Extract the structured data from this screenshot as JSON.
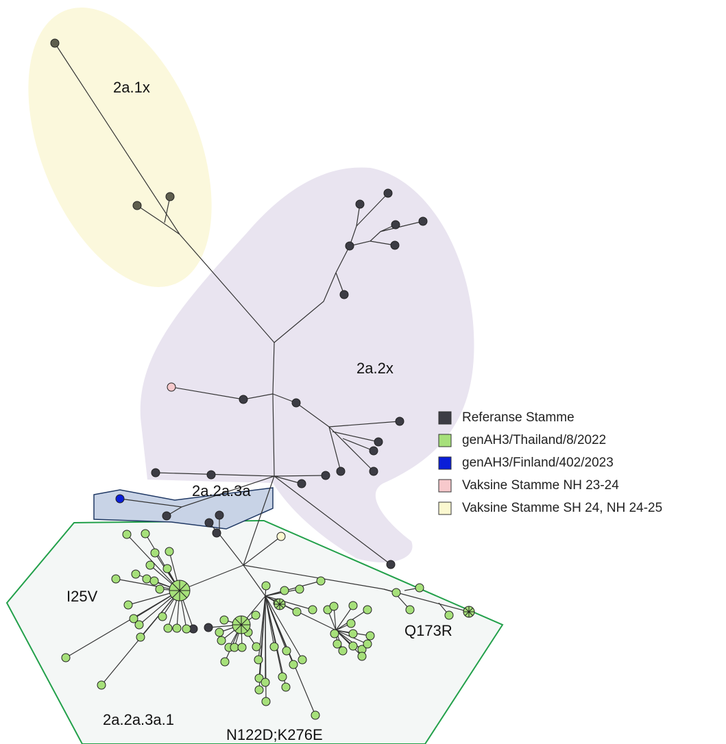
{
  "clusters": {
    "a1x": "2a.1x",
    "a2x": "2a.2x",
    "a3a": "2a.2a.3a",
    "a3a1": "2a.2a.3a.1"
  },
  "mutations": {
    "i25v": "I25V",
    "q173r": "Q173R",
    "n122d": "N122D;K276E"
  },
  "legend": [
    {
      "label": "Referanse Stamme",
      "color": "#3c3c44"
    },
    {
      "label": "genAH3/Thailand/8/2022",
      "color": "#a6e07a"
    },
    {
      "label": "genAH3/Finland/402/2023",
      "color": "#0a1ed8"
    },
    {
      "label": "Vaksine Stamme NH 23-24",
      "color": "#f7c9cc"
    },
    {
      "label": "Vaksine Stamme SH 24, NH 24-25",
      "color": "#fbf8d0"
    }
  ]
}
